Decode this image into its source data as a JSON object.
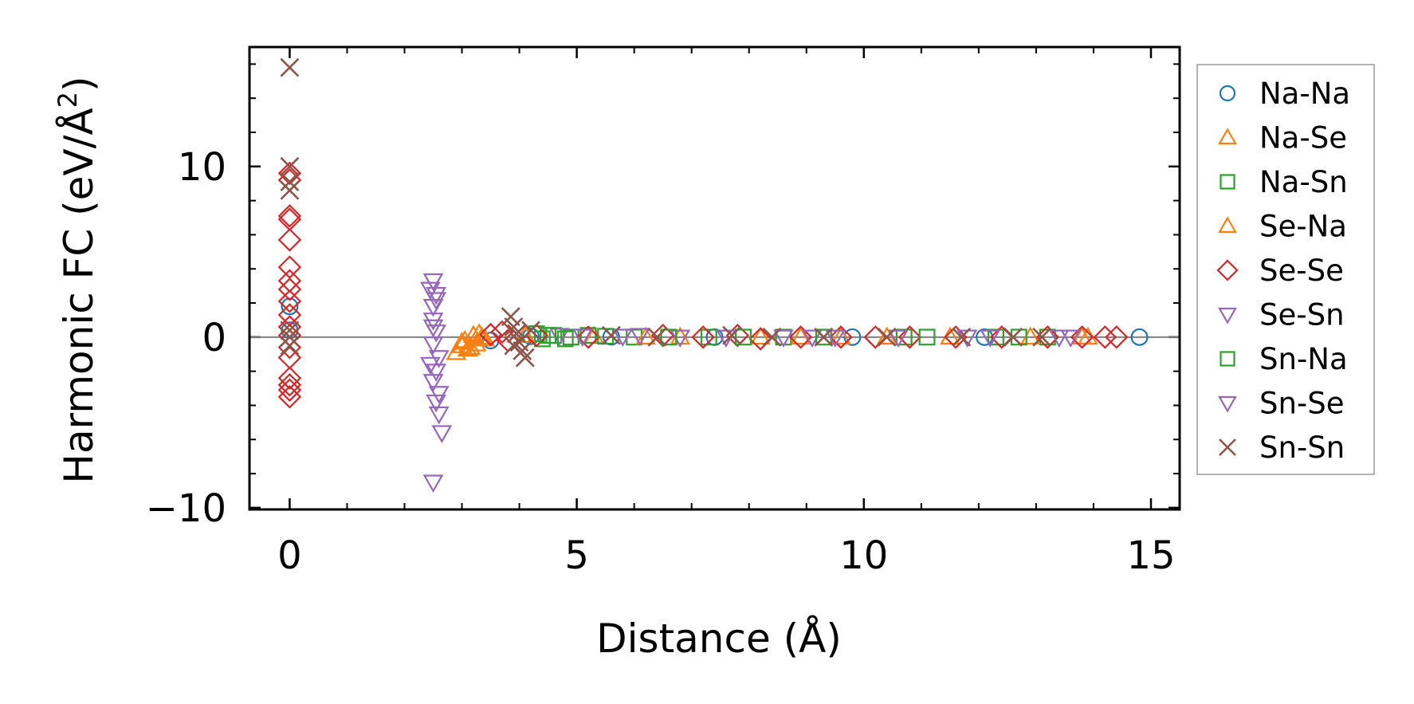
{
  "chart_data": {
    "type": "scatter",
    "title": "",
    "xlabel": "Distance (Å)",
    "ylabel_main": "Harmonic FC (eV/Å",
    "ylabel_sup": "2",
    "ylabel_close": ")",
    "xlim": [
      -0.7,
      15.5
    ],
    "ylim": [
      -10.1,
      17
    ],
    "xticks": [
      0,
      5,
      10,
      15
    ],
    "xtick_labels": [
      "0",
      "5",
      "10",
      "15"
    ],
    "yticks": [
      -10,
      0,
      10
    ],
    "ytick_labels": [
      "−10",
      "0",
      "10"
    ],
    "x_minor_step": 1,
    "y_minor_step": 2,
    "zero_line": true,
    "grid": false,
    "legend_position": "outside-right",
    "series": [
      {
        "name": "Na-Na",
        "marker": "circle",
        "color": "#1f77b4",
        "points": [
          [
            0,
            1.8
          ],
          [
            0,
            0.4
          ],
          [
            3.5,
            -0.2
          ],
          [
            4.2,
            0.05
          ],
          [
            5.6,
            0.02
          ],
          [
            7.4,
            0
          ],
          [
            9.8,
            0
          ],
          [
            12.1,
            0
          ],
          [
            14.8,
            0
          ]
        ]
      },
      {
        "name": "Na-Se",
        "marker": "triangle-up",
        "color": "#ff7f0e",
        "points": [
          [
            2.9,
            -0.9
          ],
          [
            3.0,
            -0.5
          ],
          [
            3.05,
            -0.2
          ],
          [
            3.1,
            -0.7
          ],
          [
            3.2,
            0.1
          ],
          [
            3.25,
            -0.4
          ],
          [
            3.3,
            0.2
          ],
          [
            3.4,
            -0.1
          ],
          [
            5.3,
            0.05
          ],
          [
            6.8,
            0
          ],
          [
            8.2,
            0
          ],
          [
            9.6,
            0
          ],
          [
            11.5,
            0
          ],
          [
            13.9,
            0
          ]
        ]
      },
      {
        "name": "Na-Sn",
        "marker": "square",
        "color": "#2ca02c",
        "points": [
          [
            4.3,
            0.2
          ],
          [
            4.4,
            -0.1
          ],
          [
            4.6,
            0.1
          ],
          [
            4.9,
            0.0
          ],
          [
            5.2,
            0.1
          ],
          [
            6.0,
            0.0
          ],
          [
            7.3,
            0.0
          ],
          [
            8.6,
            0
          ],
          [
            10.7,
            0
          ],
          [
            12.3,
            0
          ],
          [
            13.2,
            0
          ]
        ]
      },
      {
        "name": "Se-Na",
        "marker": "triangle-up",
        "color": "#ff7f0e",
        "points": [
          [
            3.0,
            -0.3
          ],
          [
            3.15,
            -0.6
          ],
          [
            3.35,
            0.0
          ],
          [
            4.1,
            0.1
          ],
          [
            6.2,
            0
          ],
          [
            8.9,
            0
          ],
          [
            10.4,
            0
          ],
          [
            12.9,
            0
          ],
          [
            13.8,
            0
          ]
        ]
      },
      {
        "name": "Se-Se",
        "marker": "diamond",
        "color": "#d62728",
        "points": [
          [
            0,
            9.6
          ],
          [
            0,
            9.2
          ],
          [
            0,
            7.1
          ],
          [
            0,
            6.9
          ],
          [
            0,
            5.7
          ],
          [
            0,
            4.1
          ],
          [
            0,
            3.3
          ],
          [
            0,
            2.8
          ],
          [
            0,
            2.1
          ],
          [
            0,
            1.3
          ],
          [
            0,
            0.6
          ],
          [
            0,
            0.1
          ],
          [
            0,
            -0.6
          ],
          [
            0,
            -1.2
          ],
          [
            0,
            -2.4
          ],
          [
            0,
            -2.8
          ],
          [
            0,
            -3.1
          ],
          [
            0,
            -3.5
          ],
          [
            3.5,
            0.15
          ],
          [
            3.7,
            0.3
          ],
          [
            3.8,
            -0.2
          ],
          [
            4.3,
            0.1
          ],
          [
            5.2,
            0
          ],
          [
            6.5,
            0.1
          ],
          [
            7.2,
            0
          ],
          [
            7.8,
            0.1
          ],
          [
            8.2,
            -0.1
          ],
          [
            8.9,
            0
          ],
          [
            9.6,
            0
          ],
          [
            10.2,
            0
          ],
          [
            10.8,
            0
          ],
          [
            11.6,
            0
          ],
          [
            12.4,
            0
          ],
          [
            13.2,
            0
          ],
          [
            13.8,
            0
          ],
          [
            14.2,
            0
          ],
          [
            14.4,
            0
          ]
        ]
      },
      {
        "name": "Se-Sn",
        "marker": "triangle-down",
        "color": "#9467bd",
        "points": [
          [
            2.5,
            3.3
          ],
          [
            2.55,
            2.5
          ],
          [
            2.5,
            1.8
          ],
          [
            2.5,
            1.0
          ],
          [
            2.55,
            0.3
          ],
          [
            2.5,
            -0.4
          ],
          [
            2.6,
            -1.2
          ],
          [
            2.55,
            -2.0
          ],
          [
            2.5,
            -2.6
          ],
          [
            2.6,
            -3.3
          ],
          [
            2.6,
            -4.5
          ],
          [
            2.65,
            -5.6
          ],
          [
            2.5,
            -8.5
          ],
          [
            4.7,
            0.1
          ],
          [
            5.8,
            0.05
          ],
          [
            6.8,
            0
          ],
          [
            8.6,
            0
          ],
          [
            9.1,
            0
          ],
          [
            10.6,
            0
          ],
          [
            12.2,
            0
          ],
          [
            13.4,
            0
          ]
        ]
      },
      {
        "name": "Sn-Na",
        "marker": "square",
        "color": "#2ca02c",
        "points": [
          [
            4.5,
            0.1
          ],
          [
            4.8,
            -0.1
          ],
          [
            5.5,
            0.05
          ],
          [
            6.6,
            0.0
          ],
          [
            7.9,
            0.0
          ],
          [
            9.3,
            0
          ],
          [
            11.1,
            0
          ],
          [
            12.7,
            0
          ]
        ]
      },
      {
        "name": "Sn-Se",
        "marker": "triangle-down",
        "color": "#9467bd",
        "points": [
          [
            2.45,
            2.8
          ],
          [
            2.55,
            2.2
          ],
          [
            2.5,
            0.6
          ],
          [
            2.45,
            -1.6
          ],
          [
            2.55,
            -3.8
          ],
          [
            5.1,
            0.05
          ],
          [
            6.1,
            0.1
          ],
          [
            7.6,
            0
          ],
          [
            9.5,
            0
          ],
          [
            11.8,
            0
          ],
          [
            13.6,
            0
          ]
        ]
      },
      {
        "name": "Sn-Sn",
        "marker": "x",
        "color": "#8c564b",
        "points": [
          [
            0,
            15.8
          ],
          [
            0,
            10.0
          ],
          [
            0,
            9.1
          ],
          [
            0,
            8.6
          ],
          [
            0,
            0.4
          ],
          [
            0,
            0.0
          ],
          [
            0,
            -0.5
          ],
          [
            3.85,
            1.2
          ],
          [
            3.9,
            0.6
          ],
          [
            3.95,
            0.2
          ],
          [
            4.0,
            -0.3
          ],
          [
            4.05,
            -0.8
          ],
          [
            4.1,
            -1.2
          ],
          [
            3.9,
            -0.5
          ],
          [
            4.2,
            0.4
          ],
          [
            5.6,
            0.1
          ],
          [
            6.4,
            0
          ],
          [
            7.7,
            0.1
          ],
          [
            8.4,
            0
          ],
          [
            9.3,
            0
          ],
          [
            10.4,
            0
          ],
          [
            11.7,
            0
          ],
          [
            12.6,
            0
          ],
          [
            13.1,
            0
          ]
        ]
      }
    ]
  }
}
